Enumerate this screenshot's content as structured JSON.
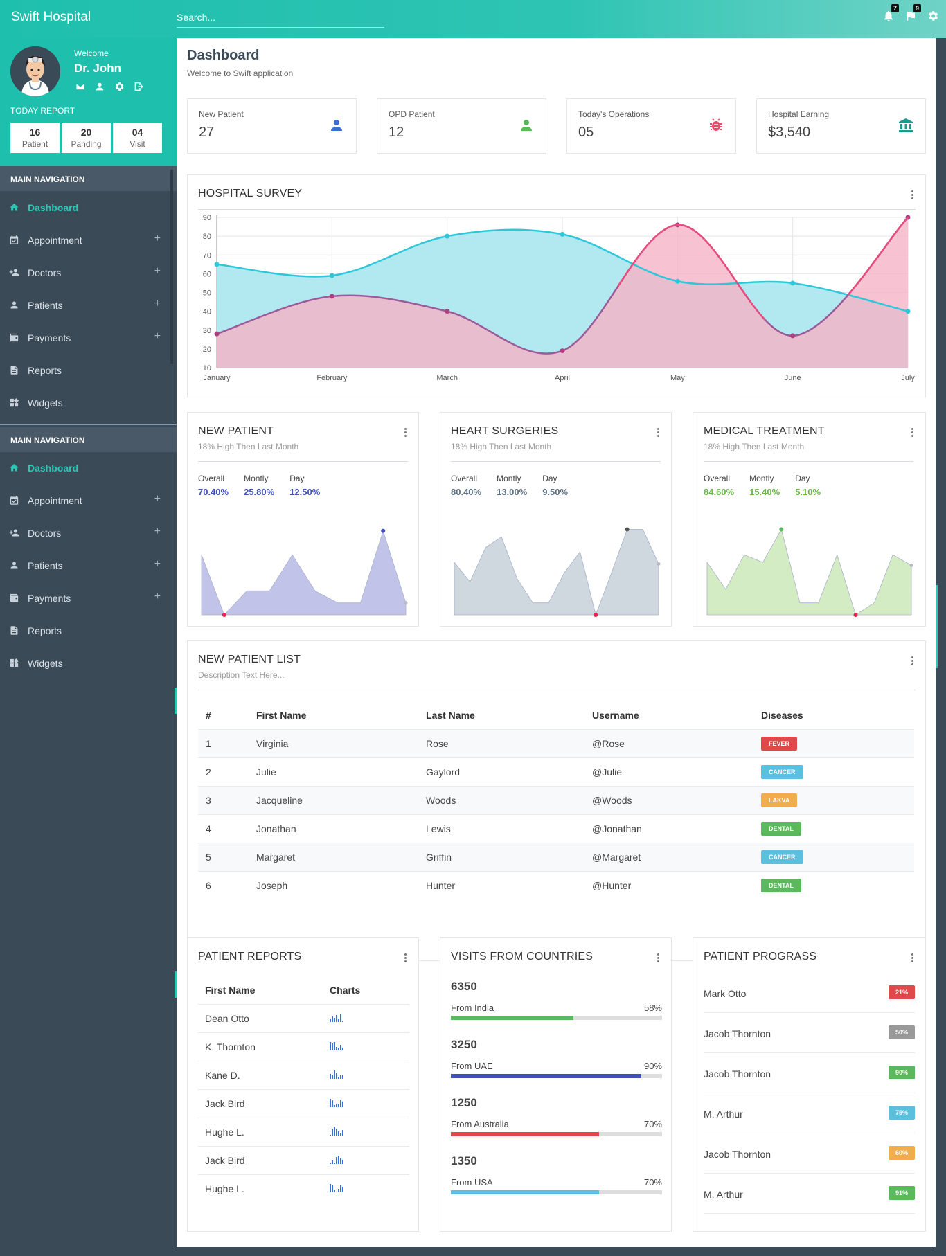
{
  "app": {
    "brand": "Swift Hospital",
    "search_placeholder": "Search...",
    "notifications_count": "7",
    "flags_count": "9"
  },
  "profile": {
    "welcome": "Welcome",
    "name": "Dr. John",
    "today_report": "TODAY REPORT",
    "stats": [
      {
        "value": "16",
        "label": "Patient"
      },
      {
        "value": "20",
        "label": "Panding"
      },
      {
        "value": "04",
        "label": "Visit"
      }
    ]
  },
  "nav": {
    "heading": "MAIN NAVIGATION",
    "items": [
      {
        "label": "Dashboard",
        "icon": "home-icon",
        "expandable": false
      },
      {
        "label": "Appointment",
        "icon": "calendar-check-icon",
        "expandable": true
      },
      {
        "label": "Doctors",
        "icon": "user-plus-icon",
        "expandable": true
      },
      {
        "label": "Patients",
        "icon": "user-icon",
        "expandable": true
      },
      {
        "label": "Payments",
        "icon": "wallet-icon",
        "expandable": true
      },
      {
        "label": "Reports",
        "icon": "document-icon",
        "expandable": false
      },
      {
        "label": "Widgets",
        "icon": "widgets-icon",
        "expandable": false
      }
    ],
    "plus": "+"
  },
  "page": {
    "title": "Dashboard",
    "subtitle": "Welcome to Swift application"
  },
  "kpis": [
    {
      "label": "New Patient",
      "value": "27",
      "icon": "user-icon",
      "color": "#3c6fd1"
    },
    {
      "label": "OPD Patient",
      "value": "12",
      "icon": "user-icon",
      "color": "#5cb85c"
    },
    {
      "label": "Today's Operations",
      "value": "05",
      "icon": "bug-icon",
      "color": "#e84b6a"
    },
    {
      "label": "Hospital Earning",
      "value": "$3,540",
      "icon": "bank-icon",
      "color": "#1a9b8d"
    }
  ],
  "survey": {
    "title": "HOSPITAL SURVEY"
  },
  "chart_data": [
    {
      "type": "area",
      "categories": [
        "January",
        "February",
        "March",
        "April",
        "May",
        "June",
        "July"
      ],
      "ylim": [
        10,
        90
      ],
      "yticks": [
        "90",
        "80",
        "70",
        "60",
        "50",
        "40",
        "30",
        "20",
        "10"
      ],
      "series": [
        {
          "color": "#2ec7d9",
          "fill": "#aee8f0",
          "values": [
            65,
            59,
            80,
            81,
            56,
            55,
            40
          ]
        },
        {
          "color": "#e84b7d",
          "fill": "#f5b3c6",
          "values": [
            28,
            48,
            40,
            19,
            86,
            27,
            90
          ]
        }
      ],
      "grid": true
    },
    {
      "type": "area",
      "color": "#c1c4e8",
      "values": [
        40,
        0,
        16,
        16,
        40,
        16,
        8,
        8,
        56,
        8
      ],
      "marker_color": "#3f51b5"
    },
    {
      "type": "area",
      "color": "#ced8de",
      "values": [
        35,
        22,
        45,
        52,
        24,
        8,
        8,
        28,
        42,
        0,
        28,
        57,
        57,
        34
      ],
      "marker_color": "#555"
    },
    {
      "type": "area",
      "color": "#d4ecc4",
      "values": [
        35,
        17,
        40,
        35,
        57,
        8,
        8,
        40,
        0,
        8,
        40,
        33
      ],
      "marker_color": "#5cb85c"
    }
  ],
  "small_cards": [
    {
      "title": "NEW PATIENT",
      "subtitle": "18% High Then Last Month",
      "overall_label": "Overall",
      "monthly_label": "Montly",
      "day_label": "Day",
      "overall": "70.40%",
      "monthly": "25.80%",
      "day": "12.50%",
      "color": "#3f51b5"
    },
    {
      "title": "HEART SURGERIES",
      "subtitle": "18% High Then Last Month",
      "overall_label": "Overall",
      "monthly_label": "Montly",
      "day_label": "Day",
      "overall": "80.40%",
      "monthly": "13.00%",
      "day": "9.50%",
      "color": "#5b6f80"
    },
    {
      "title": "MEDICAL TREATMENT",
      "subtitle": "18% High Then Last Month",
      "overall_label": "Overall",
      "monthly_label": "Montly",
      "day_label": "Day",
      "overall": "84.60%",
      "monthly": "15.40%",
      "day": "5.10%",
      "color": "#6ab547"
    }
  ],
  "patient_list": {
    "title": "NEW PATIENT LIST",
    "subtitle": "Description Text Here...",
    "headers": [
      "#",
      "First Name",
      "Last Name",
      "Username",
      "Diseases"
    ],
    "rows": [
      {
        "n": "1",
        "first": "Virginia",
        "last": "Rose",
        "user": "@Rose",
        "disease": "FEVER",
        "color": "#e0494b"
      },
      {
        "n": "2",
        "first": "Julie",
        "last": "Gaylord",
        "user": "@Julie",
        "disease": "CANCER",
        "color": "#5bc0de"
      },
      {
        "n": "3",
        "first": "Jacqueline",
        "last": "Woods",
        "user": "@Woods",
        "disease": "LAKVA",
        "color": "#f0ad4e"
      },
      {
        "n": "4",
        "first": "Jonathan",
        "last": "Lewis",
        "user": "@Jonathan",
        "disease": "DENTAL",
        "color": "#5cb85c"
      },
      {
        "n": "5",
        "first": "Margaret",
        "last": "Griffin",
        "user": "@Margaret",
        "disease": "CANCER",
        "color": "#5bc0de"
      },
      {
        "n": "6",
        "first": "Joseph",
        "last": "Hunter",
        "user": "@Hunter",
        "disease": "DENTAL",
        "color": "#5cb85c"
      }
    ]
  },
  "patient_reports": {
    "title": "PATIENT REPORTS",
    "headers": [
      "First Name",
      "Charts"
    ],
    "rows": [
      {
        "name": "Dean Otto",
        "bars": [
          5,
          8,
          6,
          10,
          4,
          12,
          1
        ]
      },
      {
        "name": "K. Thornton",
        "bars": [
          12,
          10,
          12,
          5,
          3,
          8,
          4
        ]
      },
      {
        "name": "Kane D.",
        "bars": [
          7,
          5,
          12,
          8,
          3,
          5,
          5
        ]
      },
      {
        "name": "Jack Bird",
        "bars": [
          12,
          10,
          3,
          5,
          4,
          10,
          8
        ]
      },
      {
        "name": "Hughe L.",
        "bars": [
          1,
          9,
          12,
          10,
          6,
          3,
          8
        ]
      },
      {
        "name": "Jack Bird",
        "bars": [
          1,
          5,
          2,
          10,
          12,
          9,
          6
        ]
      },
      {
        "name": "Hughe L.",
        "bars": [
          12,
          10,
          4,
          1,
          5,
          10,
          8
        ]
      }
    ]
  },
  "visits": {
    "title": "VISITS FROM COUNTRIES",
    "rows": [
      {
        "count": "6350",
        "label": "From India",
        "pct": "58%",
        "fraction": 0.58,
        "color": "#5cb85c"
      },
      {
        "count": "3250",
        "label": "From UAE",
        "pct": "90%",
        "fraction": 0.9,
        "color": "#3f51b5"
      },
      {
        "count": "1250",
        "label": "From Australia",
        "pct": "70%",
        "fraction": 0.7,
        "color": "#e0494b"
      },
      {
        "count": "1350",
        "label": "From USA",
        "pct": "70%",
        "fraction": 0.7,
        "color": "#5bc0de"
      }
    ]
  },
  "progress": {
    "title": "PATIENT PROGRASS",
    "rows": [
      {
        "name": "Mark Otto",
        "pct": "21%",
        "color": "#e0494b"
      },
      {
        "name": "Jacob Thornton",
        "pct": "50%",
        "color": "#999999"
      },
      {
        "name": "Jacob Thornton",
        "pct": "90%",
        "color": "#5cb85c"
      },
      {
        "name": "M. Arthur",
        "pct": "75%",
        "color": "#5bc0de"
      },
      {
        "name": "Jacob Thornton",
        "pct": "60%",
        "color": "#f0ad4e"
      },
      {
        "name": "M. Arthur",
        "pct": "91%",
        "color": "#5cb85c"
      }
    ]
  }
}
